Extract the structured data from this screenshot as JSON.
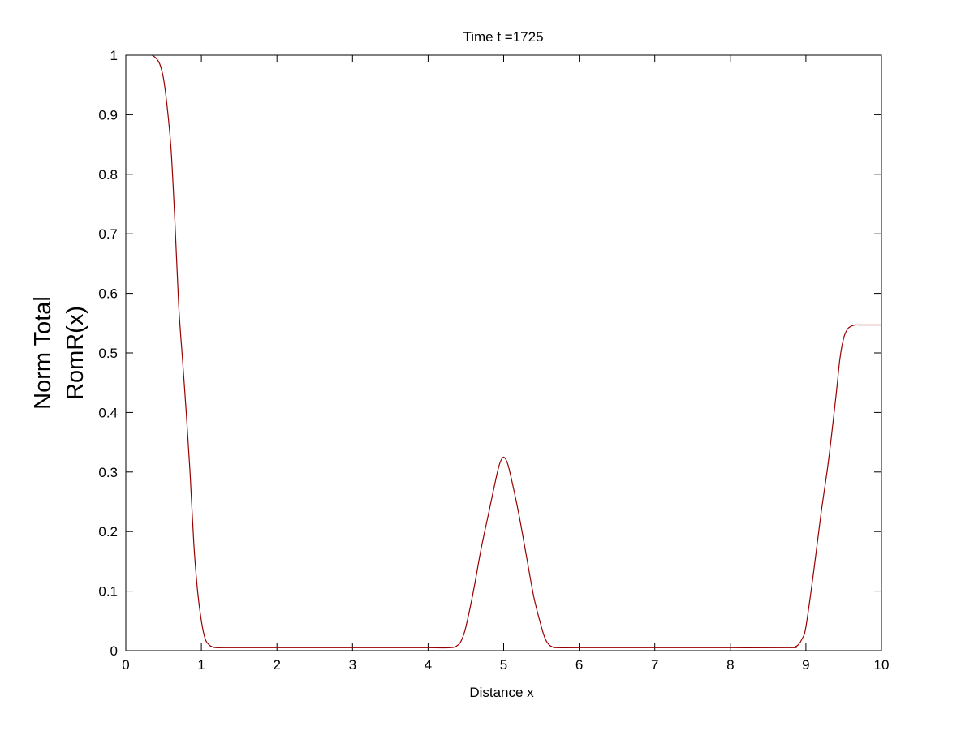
{
  "chart_data": {
    "type": "line",
    "title": "Time t =1725",
    "xlabel": "Distance x",
    "ylabel_lines": [
      "Norm Total",
      "RomR(x)"
    ],
    "xlim": [
      0,
      10
    ],
    "ylim": [
      0,
      1
    ],
    "x_ticks": [
      0,
      1,
      2,
      3,
      4,
      5,
      6,
      7,
      8,
      9,
      10
    ],
    "x_tick_labels": [
      "0",
      "1",
      "2",
      "3",
      "4",
      "5",
      "6",
      "7",
      "8",
      "9",
      "10"
    ],
    "y_ticks": [
      0,
      0.1,
      0.2,
      0.3,
      0.4,
      0.5,
      0.6,
      0.7,
      0.8,
      0.9,
      1
    ],
    "y_tick_labels": [
      "0",
      "0.1",
      "0.2",
      "0.3",
      "0.4",
      "0.5",
      "0.6",
      "0.7",
      "0.8",
      "0.9",
      "1"
    ],
    "grid": false,
    "series": [
      {
        "name": "RomR(x)",
        "color": "#990000",
        "x": [
          0.35,
          0.4,
          0.45,
          0.5,
          0.55,
          0.6,
          0.65,
          0.7,
          0.75,
          0.8,
          0.85,
          0.9,
          0.95,
          1.0,
          1.05,
          1.1,
          1.15,
          1.2,
          1.3,
          2.0,
          3.0,
          4.0,
          4.3,
          4.4,
          4.45,
          4.5,
          4.6,
          4.7,
          4.8,
          4.9,
          4.95,
          5.0,
          5.05,
          5.1,
          5.2,
          5.3,
          5.4,
          5.5,
          5.55,
          5.6,
          5.65,
          5.7,
          6.0,
          7.0,
          8.0,
          8.8,
          8.85,
          8.9,
          8.95,
          9.0,
          9.1,
          9.2,
          9.3,
          9.4,
          9.45,
          9.5,
          9.55,
          9.6,
          9.65,
          9.7,
          9.8,
          10.0
        ],
        "y": [
          1.0,
          0.995,
          0.985,
          0.96,
          0.91,
          0.84,
          0.72,
          0.58,
          0.49,
          0.4,
          0.3,
          0.18,
          0.1,
          0.05,
          0.02,
          0.01,
          0.006,
          0.005,
          0.005,
          0.005,
          0.005,
          0.005,
          0.005,
          0.01,
          0.02,
          0.04,
          0.1,
          0.17,
          0.23,
          0.29,
          0.315,
          0.325,
          0.315,
          0.29,
          0.23,
          0.16,
          0.09,
          0.04,
          0.02,
          0.01,
          0.006,
          0.005,
          0.005,
          0.005,
          0.005,
          0.005,
          0.006,
          0.01,
          0.02,
          0.04,
          0.13,
          0.23,
          0.32,
          0.43,
          0.49,
          0.525,
          0.54,
          0.545,
          0.547,
          0.547,
          0.547,
          0.547
        ]
      }
    ]
  }
}
